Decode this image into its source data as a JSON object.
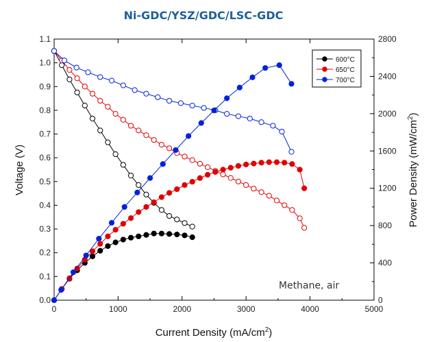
{
  "chart_data": {
    "type": "line",
    "title": "Ni-GDC/YSZ/GDC/LSC-GDC",
    "xlabel": "Current Density (mA/cm",
    "xlabel_sup": "2",
    "xlabel_end": ")",
    "ylabel": "Voltage (V)",
    "y2label": "Power Density (mW/cm",
    "y2label_sup": "2",
    "y2label_end": ")",
    "xlim": [
      0,
      5000
    ],
    "ylim": [
      0,
      1.1
    ],
    "y2lim": [
      0,
      2800
    ],
    "xticks": [
      "0",
      "1000",
      "2000",
      "3000",
      "4000",
      "5000"
    ],
    "yticks": [
      "0.0",
      "0.1",
      "0.2",
      "0.3",
      "0.4",
      "0.5",
      "0.6",
      "0.7",
      "0.8",
      "0.9",
      "1.0",
      "1.1"
    ],
    "y2ticks": [
      "0",
      "400",
      "800",
      "1200",
      "1600",
      "2000",
      "2400",
      "2800"
    ],
    "annotation": "Methane, air",
    "legend": {
      "position": "top-right",
      "entries": [
        "600°C",
        "650°C",
        "700°C"
      ]
    },
    "series": [
      {
        "name": "600°C",
        "color": "#000000",
        "voltage": {
          "x": [
            0,
            120,
            240,
            360,
            480,
            600,
            720,
            840,
            960,
            1080,
            1200,
            1320,
            1440,
            1560,
            1680,
            1800,
            1920,
            2040,
            2160
          ],
          "y": [
            1.05,
            0.99,
            0.93,
            0.875,
            0.82,
            0.765,
            0.715,
            0.665,
            0.615,
            0.57,
            0.525,
            0.485,
            0.445,
            0.41,
            0.38,
            0.355,
            0.34,
            0.325,
            0.31
          ]
        },
        "power": {
          "x": [
            0,
            120,
            240,
            360,
            480,
            600,
            720,
            840,
            960,
            1080,
            1200,
            1320,
            1440,
            1560,
            1680,
            1800,
            1920,
            2040,
            2160
          ],
          "y": [
            0,
            120,
            230,
            320,
            400,
            470,
            530,
            580,
            620,
            650,
            670,
            685,
            700,
            715,
            715,
            710,
            705,
            695,
            675
          ]
        }
      },
      {
        "name": "650°C",
        "color": "#e00000",
        "voltage": {
          "x": [
            0,
            120,
            240,
            360,
            480,
            600,
            720,
            840,
            960,
            1080,
            1200,
            1320,
            1440,
            1560,
            1680,
            1800,
            1920,
            2040,
            2160,
            2280,
            2400,
            2520,
            2640,
            2760,
            2880,
            3000,
            3120,
            3240,
            3360,
            3480,
            3600,
            3720,
            3840,
            3910
          ],
          "y": [
            1.05,
            1.01,
            0.97,
            0.935,
            0.9,
            0.87,
            0.84,
            0.815,
            0.785,
            0.76,
            0.735,
            0.715,
            0.695,
            0.675,
            0.655,
            0.64,
            0.62,
            0.605,
            0.59,
            0.575,
            0.56,
            0.545,
            0.53,
            0.515,
            0.5,
            0.485,
            0.47,
            0.455,
            0.44,
            0.42,
            0.4,
            0.38,
            0.345,
            0.305
          ]
        },
        "power": {
          "x": [
            0,
            120,
            240,
            360,
            480,
            600,
            720,
            840,
            960,
            1080,
            1200,
            1320,
            1440,
            1560,
            1680,
            1800,
            1920,
            2040,
            2160,
            2280,
            2400,
            2520,
            2640,
            2760,
            2880,
            3000,
            3120,
            3240,
            3360,
            3480,
            3600,
            3720,
            3840,
            3910
          ],
          "y": [
            0,
            120,
            235,
            340,
            435,
            525,
            605,
            685,
            755,
            820,
            880,
            945,
            1000,
            1050,
            1105,
            1150,
            1190,
            1235,
            1270,
            1310,
            1345,
            1375,
            1400,
            1420,
            1440,
            1455,
            1465,
            1475,
            1480,
            1480,
            1475,
            1460,
            1400,
            1200
          ]
        }
      },
      {
        "name": "700°C",
        "color": "#0022dd",
        "voltage": {
          "x": [
            0,
            160,
            350,
            530,
            720,
            900,
            1080,
            1260,
            1440,
            1620,
            1800,
            1980,
            2160,
            2340,
            2520,
            2700,
            2880,
            3060,
            3240,
            3420,
            3560,
            3710
          ],
          "y": [
            1.05,
            1.01,
            0.98,
            0.96,
            0.94,
            0.925,
            0.905,
            0.885,
            0.87,
            0.855,
            0.84,
            0.83,
            0.82,
            0.81,
            0.8,
            0.785,
            0.775,
            0.765,
            0.75,
            0.735,
            0.71,
            0.625
          ]
        },
        "power": {
          "x": [
            0,
            110,
            300,
            500,
            700,
            900,
            1100,
            1300,
            1500,
            1700,
            1900,
            2100,
            2300,
            2500,
            2700,
            2900,
            3100,
            3300,
            3520,
            3710
          ],
          "y": [
            0,
            110,
            300,
            480,
            660,
            830,
            1000,
            1155,
            1310,
            1460,
            1610,
            1760,
            1900,
            2035,
            2165,
            2280,
            2390,
            2490,
            2520,
            2320
          ]
        }
      }
    ]
  }
}
